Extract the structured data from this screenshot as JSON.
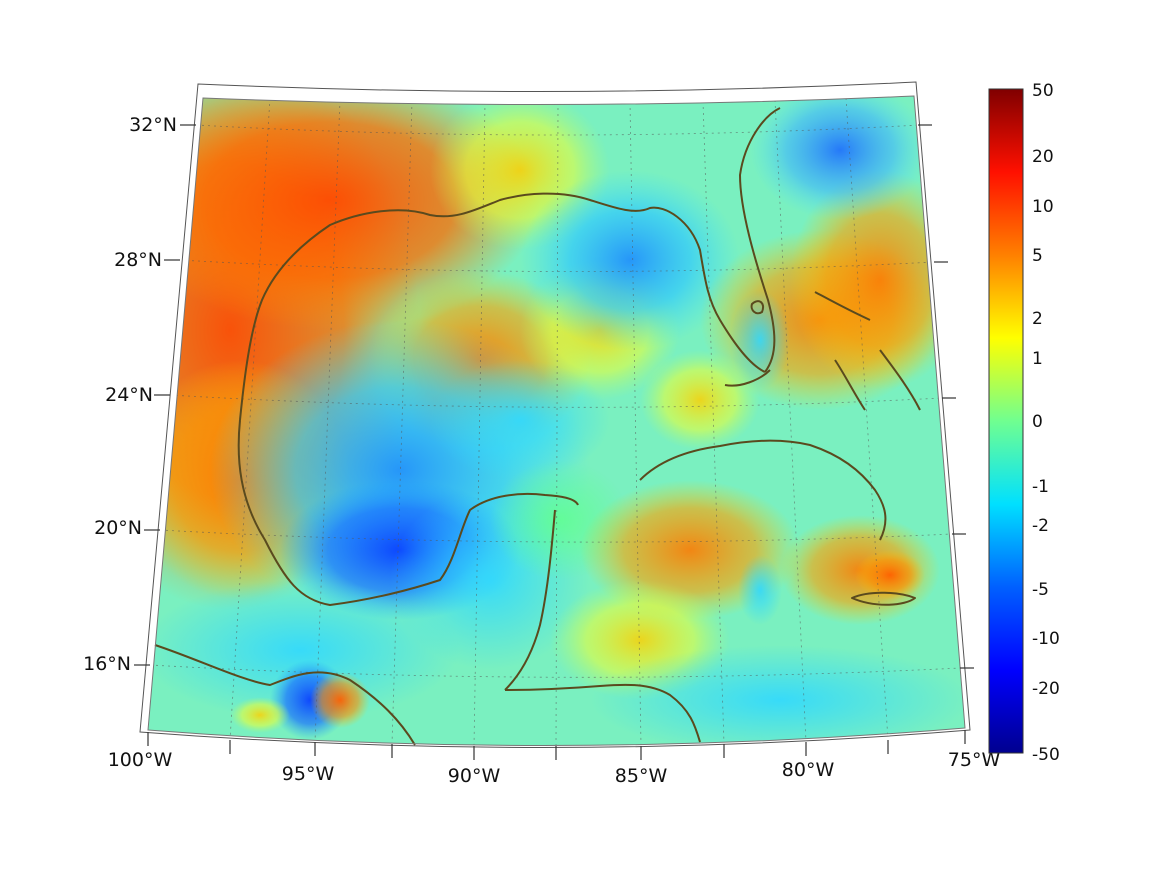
{
  "map": {
    "projection": "lambert conic",
    "grid": true,
    "lat_labels": [
      "32°N",
      "28°N",
      "24°N",
      "20°N",
      "16°N"
    ],
    "lon_labels": [
      "100°W",
      "95°W",
      "90°W",
      "85°W",
      "80°W",
      "75°W"
    ],
    "extent": {
      "lon": [
        -100,
        -75
      ],
      "lat": [
        14,
        33
      ]
    },
    "coastline_color": "#5a4a1e",
    "colormap": "jet"
  },
  "colorbar": {
    "scale": "symmetric-log",
    "tick_labels": [
      "50",
      "20",
      "10",
      "5",
      "2",
      "1",
      "0",
      "-1",
      "-2",
      "-5",
      "-10",
      "-20",
      "-50"
    ],
    "colors": [
      "#00008f",
      "#0000ff",
      "#0080ff",
      "#00ffff",
      "#80ff80",
      "#ffff00",
      "#ff8000",
      "#ff0000",
      "#800000"
    ]
  }
}
